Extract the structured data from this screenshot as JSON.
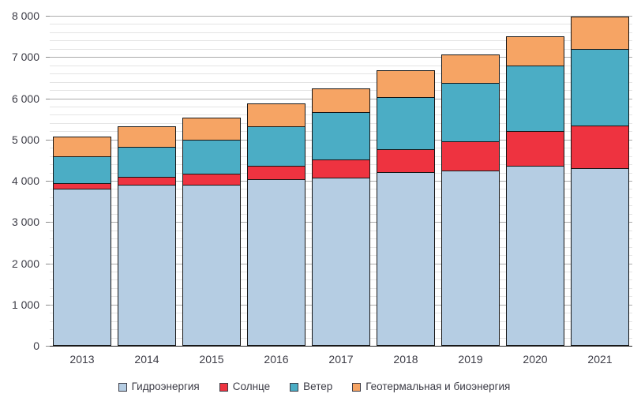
{
  "chart_data": {
    "type": "bar",
    "stacked": true,
    "title": "",
    "xlabel": "",
    "ylabel": "",
    "categories": [
      "2013",
      "2014",
      "2015",
      "2016",
      "2017",
      "2018",
      "2019",
      "2020",
      "2021"
    ],
    "series": [
      {
        "name": "Гидроэнергия",
        "color": "#b5cde3",
        "values": [
          3794,
          3885,
          3892,
          4020,
          4060,
          4193,
          4230,
          4346,
          4280
        ]
      },
      {
        "name": "Солнце",
        "color": "#ee3340",
        "values": [
          139,
          198,
          256,
          328,
          442,
          562,
          699,
          844,
          1032
        ]
      },
      {
        "name": "Ветер",
        "color": "#4badc5",
        "values": [
          645,
          712,
          831,
          959,
          1136,
          1263,
          1420,
          1591,
          1862
        ]
      },
      {
        "name": "Геотермальная и биоэнергия",
        "color": "#f6a464",
        "values": [
          470,
          510,
          525,
          557,
          590,
          640,
          690,
          710,
          780
        ]
      }
    ],
    "ylim": [
      0,
      8000
    ],
    "y_major_step": 1000,
    "y_minor_step": 200,
    "y_tick_labels": [
      "0",
      "1 000",
      "2 000",
      "3 000",
      "4 000",
      "5 000",
      "6 000",
      "7 000",
      "8 000"
    ],
    "grid": true,
    "legend_position": "bottom"
  }
}
